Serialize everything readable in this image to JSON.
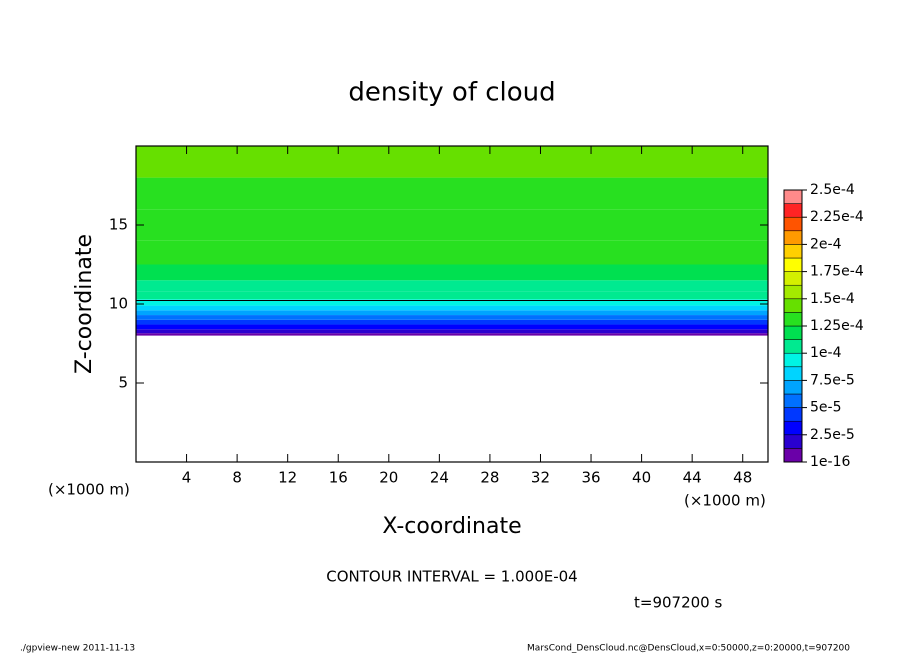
{
  "chart_data": {
    "type": "contour",
    "title": "density of cloud",
    "x_label": "X-coordinate",
    "y_label": "Z-coordinate",
    "x_unit_left": "(×1000 m)",
    "x_unit_right": "(×1000 m)",
    "annotation": "CONTOUR INTERVAL = 1.000E-04",
    "time_label": "t=907200 s",
    "footer_left": "./gpview-new   2011-11-13",
    "footer_right": "MarsCond_DensCloud.nc@DensCloud,x=0:50000,z=0:20000,t=907200",
    "xlim": [
      0,
      50
    ],
    "xticks": [
      4,
      8,
      12,
      16,
      20,
      24,
      28,
      32,
      36,
      40,
      44,
      48
    ],
    "ylim": [
      0,
      20
    ],
    "yticks": [
      5,
      10,
      15
    ],
    "z": [
      8.0,
      8.15,
      8.4,
      8.7,
      9.0,
      9.3,
      9.6,
      9.9,
      10.3,
      10.8,
      11.5,
      12.5,
      14,
      16,
      18
    ],
    "values": [
      5e-06,
      2e-05,
      3e-05,
      4.5e-05,
      5.8e-05,
      7e-05,
      8.2e-05,
      9.2e-05,
      0.000102,
      0.000112,
      0.00012,
      0.000127,
      0.000132,
      0.000137,
      0.000142
    ],
    "contour_level": 0.0001,
    "colorbar": {
      "ticks": [
        {
          "value": 1e-16,
          "label": "1e-16"
        },
        {
          "value": 2.5e-05,
          "label": "2.5e-5"
        },
        {
          "value": 5e-05,
          "label": "5e-5"
        },
        {
          "value": 7.5e-05,
          "label": "7.5e-5"
        },
        {
          "value": 0.0001,
          "label": "1e-4"
        },
        {
          "value": 0.000125,
          "label": "1.25e-4"
        },
        {
          "value": 0.00015,
          "label": "1.5e-4"
        },
        {
          "value": 0.000175,
          "label": "1.75e-4"
        },
        {
          "value": 0.0002,
          "label": "2e-4"
        },
        {
          "value": 0.000225,
          "label": "2.25e-4"
        },
        {
          "value": 0.00025,
          "label": "2.5e-4"
        }
      ],
      "colors": [
        "#6a00a8",
        "#2a00d0",
        "#0000ff",
        "#0038ff",
        "#0070ff",
        "#00a4ff",
        "#00d4ff",
        "#00f4e4",
        "#00ea90",
        "#00e050",
        "#28e020",
        "#66e000",
        "#a4ea00",
        "#d4f000",
        "#ffff00",
        "#ffd000",
        "#ff9a00",
        "#ff5400",
        "#ff2424",
        "#ff8a8a"
      ]
    }
  }
}
